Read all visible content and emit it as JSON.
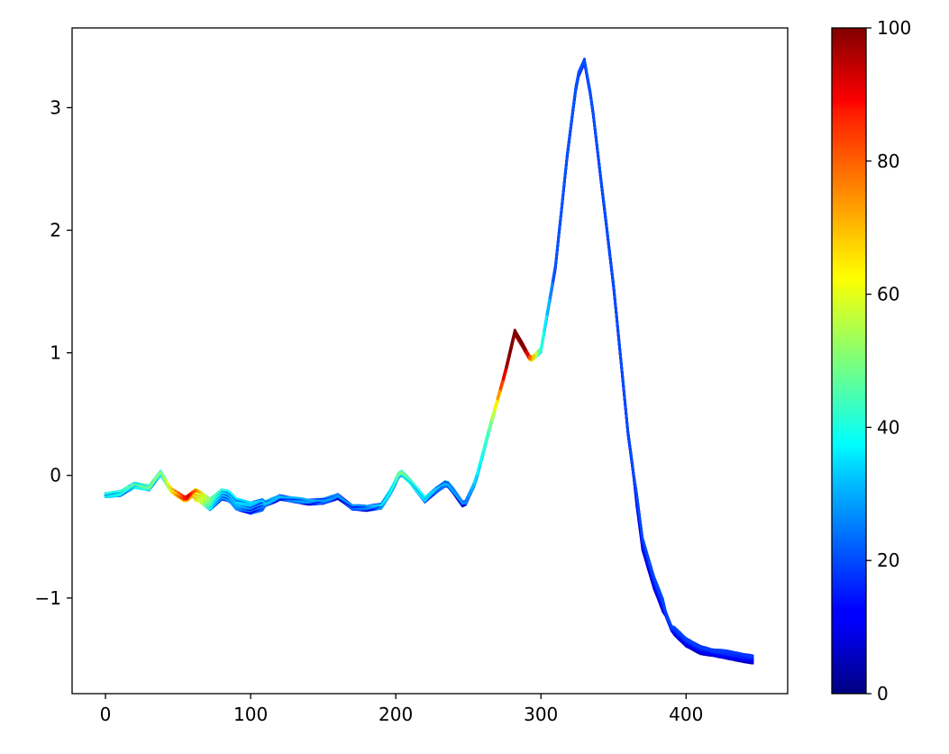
{
  "chart_data": {
    "type": "line",
    "title": "",
    "xlabel": "",
    "ylabel": "",
    "xlim": [
      -23,
      470
    ],
    "ylim": [
      -1.78,
      3.65
    ],
    "xticks": [
      0,
      100,
      200,
      300,
      400
    ],
    "xtick_labels": [
      "0",
      "100",
      "200",
      "300",
      "400"
    ],
    "yticks": [
      -1,
      0,
      1,
      2,
      3
    ],
    "ytick_labels": [
      "−1",
      "0",
      "1",
      "2",
      "3"
    ],
    "colorbar": {
      "colormap": "jet",
      "range": [
        0,
        100
      ],
      "ticks": [
        0,
        20,
        40,
        60,
        80,
        100
      ],
      "tick_labels": [
        "0",
        "20",
        "40",
        "60",
        "80",
        "100"
      ]
    },
    "grid": false,
    "legend": "none",
    "base_curve": {
      "x": [
        0,
        10,
        20,
        30,
        38,
        45,
        55,
        60,
        65,
        72,
        80,
        85,
        90,
        100,
        110,
        120,
        130,
        140,
        150,
        160,
        170,
        180,
        190,
        197,
        203,
        210,
        220,
        228,
        235,
        240,
        247,
        255,
        265,
        275,
        282,
        287,
        293,
        300,
        310,
        318,
        325,
        330,
        335,
        340,
        350,
        360,
        370,
        378,
        385,
        390,
        400,
        410,
        420,
        430,
        440,
        447
      ],
      "y": [
        -0.16,
        -0.15,
        -0.08,
        -0.1,
        0.02,
        -0.12,
        -0.2,
        -0.15,
        -0.17,
        -0.23,
        -0.15,
        -0.17,
        -0.24,
        -0.27,
        -0.23,
        -0.18,
        -0.2,
        -0.22,
        -0.21,
        -0.17,
        -0.26,
        -0.27,
        -0.25,
        -0.12,
        0.03,
        -0.05,
        -0.2,
        -0.12,
        -0.06,
        -0.13,
        -0.25,
        -0.05,
        0.4,
        0.82,
        1.17,
        1.07,
        0.94,
        1.02,
        1.7,
        2.6,
        3.25,
        3.38,
        3.05,
        2.55,
        1.55,
        0.35,
        -0.55,
        -0.88,
        -1.1,
        -1.25,
        -1.36,
        -1.42,
        -1.45,
        -1.47,
        -1.49,
        -1.5
      ]
    },
    "series_count": 20,
    "color_value_by_x": {
      "x": [
        0,
        10,
        20,
        30,
        40,
        50,
        58,
        66,
        75,
        90,
        120,
        180,
        200,
        205,
        215,
        225,
        250,
        265,
        270,
        275,
        280,
        290,
        300,
        310,
        447
      ],
      "value": [
        35,
        35,
        40,
        42,
        45,
        70,
        85,
        65,
        40,
        30,
        25,
        20,
        35,
        45,
        35,
        28,
        20,
        40,
        58,
        80,
        100,
        95,
        40,
        15,
        12
      ]
    }
  }
}
